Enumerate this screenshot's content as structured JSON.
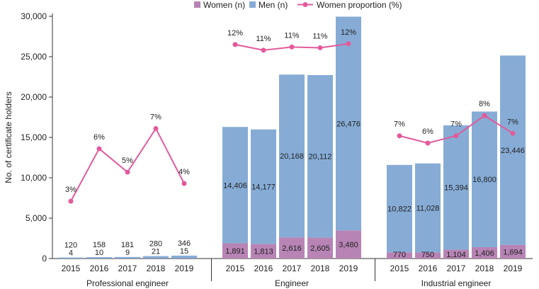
{
  "chart_data": {
    "type": "bar",
    "stacked": true,
    "ylabel": "No. of certificate holders",
    "ylim": [
      0,
      30000
    ],
    "yticks": [
      0,
      5000,
      10000,
      15000,
      20000,
      25000,
      30000
    ],
    "ytick_labels": [
      "0",
      "5,000",
      "10,000",
      "15,000",
      "20,000",
      "25,000",
      "30,000"
    ],
    "proportion_scale_note": "line plotted on separate hidden scale per group",
    "legend": {
      "placement": "top",
      "entries": [
        {
          "name": "Women (n)",
          "color": "#b784b5",
          "kind": "square"
        },
        {
          "name": "Men (n)",
          "color": "#86acd6",
          "kind": "square"
        },
        {
          "name": "Women proportion (%)",
          "color": "#e35a9b",
          "kind": "line-marker"
        }
      ]
    },
    "colors": {
      "women": "#b784b5",
      "men": "#86acd6",
      "line": "#e35a9b"
    },
    "groups": [
      {
        "name": "Professional engineer",
        "years": [
          "2015",
          "2016",
          "2017",
          "2018",
          "2019"
        ],
        "women": [
          4,
          10,
          9,
          21,
          15
        ],
        "men": [
          120,
          158,
          181,
          280,
          346
        ],
        "women_labels": [
          "4",
          "10",
          "9",
          "21",
          "15"
        ],
        "men_labels": [
          "120",
          "158",
          "181",
          "280",
          "346"
        ],
        "proportion": [
          3,
          6,
          5,
          7,
          4
        ],
        "proportion_labels": [
          "3%",
          "6%",
          "5%",
          "7%",
          "4%"
        ],
        "line_y_equiv": [
          7100,
          13600,
          10700,
          16100,
          9300
        ]
      },
      {
        "name": "Engineer",
        "years": [
          "2015",
          "2016",
          "2017",
          "2018",
          "2019"
        ],
        "women": [
          1891,
          1813,
          2616,
          2605,
          3480
        ],
        "men": [
          14406,
          14177,
          20168,
          20112,
          26476
        ],
        "women_labels": [
          "1,891",
          "1,813",
          "2,616",
          "2,605",
          "3,480"
        ],
        "men_labels": [
          "14,406",
          "14,177",
          "20,168",
          "20,112",
          "26,476"
        ],
        "proportion": [
          12,
          11,
          11,
          11,
          12
        ],
        "proportion_labels": [
          "12%",
          "11%",
          "11%",
          "11%",
          "12%"
        ],
        "line_y_equiv": [
          26500,
          25800,
          26200,
          26100,
          26600
        ]
      },
      {
        "name": "Industrial engineer",
        "years": [
          "2015",
          "2016",
          "2017",
          "2018",
          "2019"
        ],
        "women": [
          770,
          750,
          1104,
          1406,
          1694
        ],
        "men": [
          10822,
          11028,
          15394,
          16800,
          23446
        ],
        "women_labels": [
          "770",
          "750",
          "1,104",
          "1,406",
          "1,694"
        ],
        "men_labels": [
          "10,822",
          "11,028",
          "15,394",
          "16,800",
          "23,446"
        ],
        "proportion": [
          7,
          6,
          7,
          8,
          7
        ],
        "proportion_labels": [
          "7%",
          "6%",
          "7%",
          "8%",
          "7%"
        ],
        "line_y_equiv": [
          15200,
          14300,
          15200,
          17700,
          15500
        ]
      }
    ]
  }
}
